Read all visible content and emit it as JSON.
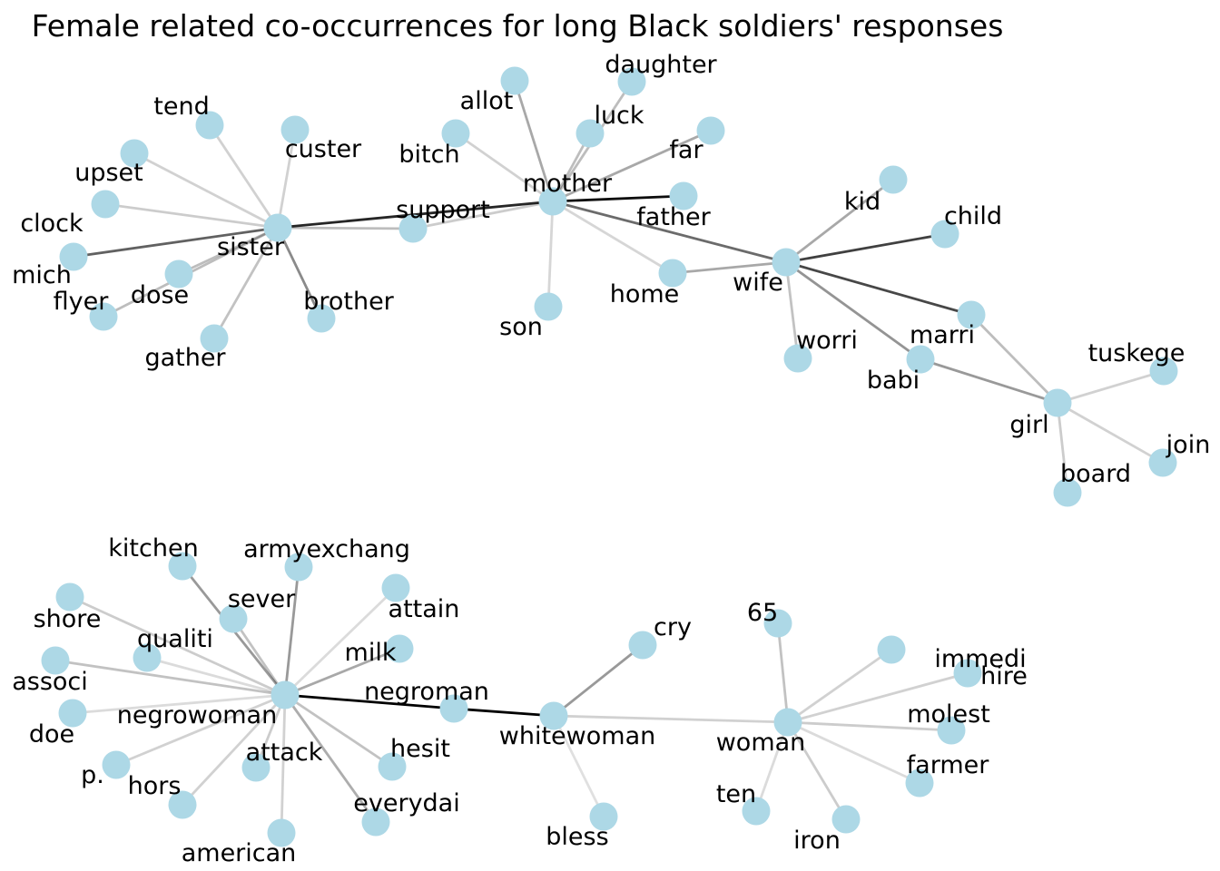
{
  "title": "Female related co-occurrences for long Black soldiers' responses",
  "node_color": "#add8e6",
  "edge_color": "#000000",
  "nodes": [
    {
      "id": "sister",
      "label": "sister"
    },
    {
      "id": "tend",
      "label": "tend"
    },
    {
      "id": "custer",
      "label": "custer"
    },
    {
      "id": "upset",
      "label": "upset"
    },
    {
      "id": "clock",
      "label": "clock"
    },
    {
      "id": "mich",
      "label": "mich"
    },
    {
      "id": "dose",
      "label": "dose"
    },
    {
      "id": "flyer",
      "label": "flyer"
    },
    {
      "id": "gather",
      "label": "gather"
    },
    {
      "id": "brother",
      "label": "brother"
    },
    {
      "id": "support",
      "label": "support"
    },
    {
      "id": "mother",
      "label": "mother"
    },
    {
      "id": "allot",
      "label": "allot"
    },
    {
      "id": "daughter",
      "label": "daughter"
    },
    {
      "id": "luck",
      "label": "luck"
    },
    {
      "id": "bitch",
      "label": "bitch"
    },
    {
      "id": "far",
      "label": "far"
    },
    {
      "id": "father",
      "label": "father"
    },
    {
      "id": "son",
      "label": "son"
    },
    {
      "id": "home",
      "label": "home"
    },
    {
      "id": "wife",
      "label": "wife"
    },
    {
      "id": "kid",
      "label": "kid"
    },
    {
      "id": "child",
      "label": "child"
    },
    {
      "id": "worri",
      "label": "worri"
    },
    {
      "id": "marri",
      "label": "marri"
    },
    {
      "id": "babi",
      "label": "babi"
    },
    {
      "id": "girl",
      "label": "girl"
    },
    {
      "id": "tuskege",
      "label": "tuskege"
    },
    {
      "id": "join",
      "label": "join"
    },
    {
      "id": "board",
      "label": "board"
    },
    {
      "id": "negrowoman",
      "label": "negrowoman"
    },
    {
      "id": "kitchen",
      "label": "kitchen"
    },
    {
      "id": "armyexchang",
      "label": "armyexchang"
    },
    {
      "id": "sever",
      "label": "sever"
    },
    {
      "id": "attain",
      "label": "attain"
    },
    {
      "id": "shore",
      "label": "shore"
    },
    {
      "id": "qualiti",
      "label": "qualiti"
    },
    {
      "id": "milk",
      "label": "milk"
    },
    {
      "id": "associ",
      "label": "associ"
    },
    {
      "id": "doe",
      "label": "doe"
    },
    {
      "id": "p",
      "label": "p."
    },
    {
      "id": "hors",
      "label": "hors"
    },
    {
      "id": "attack",
      "label": "attack"
    },
    {
      "id": "hesit",
      "label": "hesit"
    },
    {
      "id": "everydai",
      "label": "everydai"
    },
    {
      "id": "american",
      "label": "american"
    },
    {
      "id": "negroman",
      "label": "negroman"
    },
    {
      "id": "whitewoman",
      "label": "whitewoman"
    },
    {
      "id": "cry",
      "label": "cry"
    },
    {
      "id": "bless",
      "label": "bless"
    },
    {
      "id": "woman",
      "label": "woman"
    },
    {
      "id": "n65",
      "label": "65"
    },
    {
      "id": "immedi",
      "label": "immedi"
    },
    {
      "id": "hire",
      "label": "hire"
    },
    {
      "id": "molest",
      "label": "molest"
    },
    {
      "id": "farmer",
      "label": "farmer"
    },
    {
      "id": "ten",
      "label": "ten"
    },
    {
      "id": "iron",
      "label": "iron"
    }
  ],
  "edges": [
    {
      "source": "sister",
      "target": "tend",
      "weight": 0.18
    },
    {
      "source": "sister",
      "target": "custer",
      "weight": 0.18
    },
    {
      "source": "sister",
      "target": "upset",
      "weight": 0.18
    },
    {
      "source": "sister",
      "target": "clock",
      "weight": 0.2
    },
    {
      "source": "sister",
      "target": "mich",
      "weight": 0.62
    },
    {
      "source": "sister",
      "target": "dose",
      "weight": 0.26
    },
    {
      "source": "sister",
      "target": "flyer",
      "weight": 0.26
    },
    {
      "source": "sister",
      "target": "gather",
      "weight": 0.24
    },
    {
      "source": "sister",
      "target": "brother",
      "weight": 0.46
    },
    {
      "source": "sister",
      "target": "support",
      "weight": 0.26
    },
    {
      "source": "sister",
      "target": "mother",
      "weight": 0.85
    },
    {
      "source": "support",
      "target": "mother",
      "weight": 0.2
    },
    {
      "source": "mother",
      "target": "allot",
      "weight": 0.34
    },
    {
      "source": "mother",
      "target": "daughter",
      "weight": 0.26
    },
    {
      "source": "mother",
      "target": "luck",
      "weight": 0.26
    },
    {
      "source": "mother",
      "target": "bitch",
      "weight": 0.18
    },
    {
      "source": "mother",
      "target": "far",
      "weight": 0.34
    },
    {
      "source": "mother",
      "target": "father",
      "weight": 0.95
    },
    {
      "source": "mother",
      "target": "son",
      "weight": 0.16
    },
    {
      "source": "mother",
      "target": "home",
      "weight": 0.16
    },
    {
      "source": "mother",
      "target": "wife",
      "weight": 0.58
    },
    {
      "source": "home",
      "target": "wife",
      "weight": 0.34
    },
    {
      "source": "wife",
      "target": "kid",
      "weight": 0.34
    },
    {
      "source": "wife",
      "target": "child",
      "weight": 0.75
    },
    {
      "source": "wife",
      "target": "worri",
      "weight": 0.24
    },
    {
      "source": "wife",
      "target": "marri",
      "weight": 0.72
    },
    {
      "source": "wife",
      "target": "babi",
      "weight": 0.42
    },
    {
      "source": "marri",
      "target": "girl",
      "weight": 0.26
    },
    {
      "source": "babi",
      "target": "girl",
      "weight": 0.4
    },
    {
      "source": "girl",
      "target": "tuskege",
      "weight": 0.18
    },
    {
      "source": "girl",
      "target": "join",
      "weight": 0.18
    },
    {
      "source": "girl",
      "target": "board",
      "weight": 0.2
    },
    {
      "source": "negrowoman",
      "target": "kitchen",
      "weight": 0.4
    },
    {
      "source": "negrowoman",
      "target": "armyexchang",
      "weight": 0.4
    },
    {
      "source": "negrowoman",
      "target": "sever",
      "weight": 0.24
    },
    {
      "source": "negrowoman",
      "target": "attain",
      "weight": 0.14
    },
    {
      "source": "negrowoman",
      "target": "shore",
      "weight": 0.2
    },
    {
      "source": "negrowoman",
      "target": "qualiti",
      "weight": 0.14
    },
    {
      "source": "negrowoman",
      "target": "milk",
      "weight": 0.34
    },
    {
      "source": "negrowoman",
      "target": "associ",
      "weight": 0.24
    },
    {
      "source": "negrowoman",
      "target": "doe",
      "weight": 0.14
    },
    {
      "source": "negrowoman",
      "target": "p",
      "weight": 0.18
    },
    {
      "source": "negrowoman",
      "target": "hors",
      "weight": 0.18
    },
    {
      "source": "negrowoman",
      "target": "attack",
      "weight": 0.2
    },
    {
      "source": "negrowoman",
      "target": "hesit",
      "weight": 0.24
    },
    {
      "source": "negrowoman",
      "target": "everydai",
      "weight": 0.32
    },
    {
      "source": "negrowoman",
      "target": "american",
      "weight": 0.18
    },
    {
      "source": "negrowoman",
      "target": "negroman",
      "weight": 1.0
    },
    {
      "source": "negroman",
      "target": "whitewoman",
      "weight": 1.0
    },
    {
      "source": "whitewoman",
      "target": "cry",
      "weight": 0.4
    },
    {
      "source": "whitewoman",
      "target": "bless",
      "weight": 0.12
    },
    {
      "source": "whitewoman",
      "target": "woman",
      "weight": 0.18
    },
    {
      "source": "woman",
      "target": "n65",
      "weight": 0.24
    },
    {
      "source": "woman",
      "target": "immedi",
      "weight": 0.18
    },
    {
      "source": "woman",
      "target": "hire",
      "weight": 0.18
    },
    {
      "source": "woman",
      "target": "molest",
      "weight": 0.2
    },
    {
      "source": "woman",
      "target": "farmer",
      "weight": 0.14
    },
    {
      "source": "woman",
      "target": "ten",
      "weight": 0.14
    },
    {
      "source": "woman",
      "target": "iron",
      "weight": 0.2
    }
  ]
}
